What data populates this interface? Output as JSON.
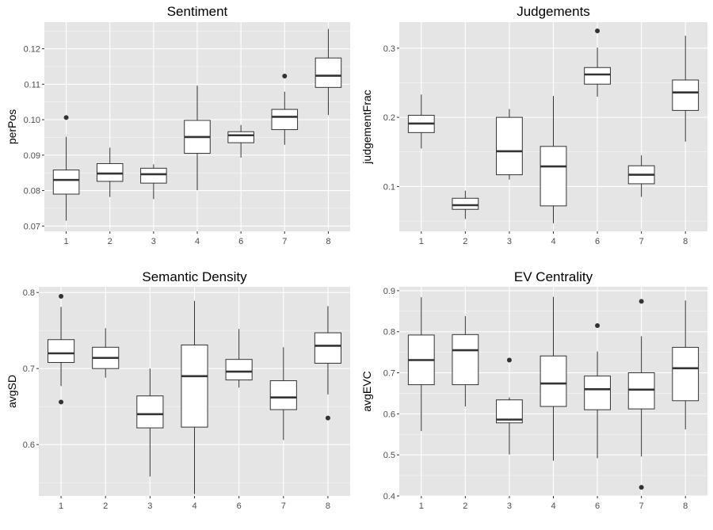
{
  "colors": {
    "panel_background": "#e5e5e5",
    "grid_major": "#ffffff",
    "box_fill": "#ffffff",
    "box_stroke": "#333333",
    "outlier": "#333333"
  },
  "chart_data": [
    {
      "type": "boxplot",
      "title": "Sentiment",
      "xlabel": "",
      "ylabel": "perPos",
      "categories": [
        "1",
        "2",
        "3",
        "4",
        "6",
        "7",
        "8"
      ],
      "ylim": [
        0.0685,
        0.1275
      ],
      "yticks": [
        0.07,
        0.08,
        0.09,
        0.1,
        0.11,
        0.12
      ],
      "ytick_labels": [
        "0.07",
        "0.08",
        "0.09",
        "0.10",
        "0.11",
        "0.12"
      ],
      "grid": true,
      "boxes": [
        {
          "category": "1",
          "min": 0.0715,
          "q1": 0.079,
          "median": 0.083,
          "q3": 0.0858,
          "max": 0.0952,
          "outliers": [
            0.1006
          ]
        },
        {
          "category": "2",
          "min": 0.0782,
          "q1": 0.0826,
          "median": 0.0848,
          "q3": 0.0876,
          "max": 0.0921,
          "outliers": []
        },
        {
          "category": "3",
          "min": 0.0776,
          "q1": 0.0821,
          "median": 0.0846,
          "q3": 0.0863,
          "max": 0.0874,
          "outliers": []
        },
        {
          "category": "4",
          "min": 0.0801,
          "q1": 0.0905,
          "median": 0.0951,
          "q3": 0.0998,
          "max": 0.1096,
          "outliers": []
        },
        {
          "category": "6",
          "min": 0.0893,
          "q1": 0.0935,
          "median": 0.0956,
          "q3": 0.0966,
          "max": 0.0985,
          "outliers": []
        },
        {
          "category": "7",
          "min": 0.0929,
          "q1": 0.0972,
          "median": 0.1008,
          "q3": 0.1029,
          "max": 0.1079,
          "outliers": [
            0.1123
          ]
        },
        {
          "category": "8",
          "min": 0.1013,
          "q1": 0.1091,
          "median": 0.1124,
          "q3": 0.1174,
          "max": 0.1256,
          "outliers": []
        }
      ]
    },
    {
      "type": "boxplot",
      "title": "Judgements",
      "xlabel": "",
      "ylabel": "judgementFrac",
      "categories": [
        "1",
        "2",
        "3",
        "4",
        "6",
        "7",
        "8"
      ],
      "ylim": [
        0.0352,
        0.3376
      ],
      "yticks": [
        0.1,
        0.2,
        0.3
      ],
      "ytick_labels": [
        "0.1",
        "0.2",
        "0.3"
      ],
      "grid": true,
      "boxes": [
        {
          "category": "1",
          "min": 0.155,
          "q1": 0.178,
          "median": 0.191,
          "q3": 0.203,
          "max": 0.233,
          "outliers": []
        },
        {
          "category": "2",
          "min": 0.053,
          "q1": 0.067,
          "median": 0.073,
          "q3": 0.083,
          "max": 0.094,
          "outliers": []
        },
        {
          "category": "3",
          "min": 0.11,
          "q1": 0.117,
          "median": 0.151,
          "q3": 0.2,
          "max": 0.212,
          "outliers": []
        },
        {
          "category": "4",
          "min": 0.047,
          "q1": 0.072,
          "median": 0.129,
          "q3": 0.158,
          "max": 0.231,
          "outliers": []
        },
        {
          "category": "6",
          "min": 0.23,
          "q1": 0.248,
          "median": 0.262,
          "q3": 0.272,
          "max": 0.301,
          "outliers": [
            0.325
          ]
        },
        {
          "category": "7",
          "min": 0.085,
          "q1": 0.104,
          "median": 0.117,
          "q3": 0.13,
          "max": 0.145,
          "outliers": []
        },
        {
          "category": "8",
          "min": 0.165,
          "q1": 0.21,
          "median": 0.236,
          "q3": 0.254,
          "max": 0.318,
          "outliers": []
        }
      ]
    },
    {
      "type": "boxplot",
      "title": "Semantic Density",
      "xlabel": "",
      "ylabel": "avgSD",
      "categories": [
        "1",
        "2",
        "3",
        "4",
        "6",
        "7",
        "8"
      ],
      "ylim": [
        0.5325,
        0.8075
      ],
      "yticks": [
        0.6,
        0.7,
        0.8
      ],
      "ytick_labels": [
        "0.6",
        "0.7",
        "0.8"
      ],
      "grid": true,
      "boxes": [
        {
          "category": "1",
          "min": 0.677,
          "q1": 0.708,
          "median": 0.72,
          "q3": 0.738,
          "max": 0.781,
          "outliers": [
            0.795,
            0.656
          ]
        },
        {
          "category": "2",
          "min": 0.688,
          "q1": 0.7,
          "median": 0.714,
          "q3": 0.728,
          "max": 0.753,
          "outliers": []
        },
        {
          "category": "3",
          "min": 0.558,
          "q1": 0.622,
          "median": 0.64,
          "q3": 0.664,
          "max": 0.7,
          "outliers": []
        },
        {
          "category": "4",
          "min": 0.535,
          "q1": 0.623,
          "median": 0.69,
          "q3": 0.731,
          "max": 0.789,
          "outliers": []
        },
        {
          "category": "6",
          "min": 0.675,
          "q1": 0.685,
          "median": 0.696,
          "q3": 0.712,
          "max": 0.752,
          "outliers": []
        },
        {
          "category": "7",
          "min": 0.606,
          "q1": 0.646,
          "median": 0.662,
          "q3": 0.684,
          "max": 0.728,
          "outliers": []
        },
        {
          "category": "8",
          "min": 0.666,
          "q1": 0.707,
          "median": 0.73,
          "q3": 0.747,
          "max": 0.782,
          "outliers": [
            0.635
          ]
        }
      ]
    },
    {
      "type": "boxplot",
      "title": "EV Centrality",
      "xlabel": "",
      "ylabel": "avgEVC",
      "categories": [
        "1",
        "2",
        "3",
        "4",
        "6",
        "7",
        "8"
      ],
      "ylim": [
        0.4,
        0.9095
      ],
      "yticks": [
        0.4,
        0.5,
        0.6,
        0.7,
        0.8,
        0.9
      ],
      "ytick_labels": [
        "0.4",
        "0.5",
        "0.6",
        "0.7",
        "0.8",
        "0.9"
      ],
      "grid": true,
      "boxes": [
        {
          "category": "1",
          "min": 0.558,
          "q1": 0.671,
          "median": 0.731,
          "q3": 0.792,
          "max": 0.884,
          "outliers": []
        },
        {
          "category": "2",
          "min": 0.618,
          "q1": 0.671,
          "median": 0.755,
          "q3": 0.793,
          "max": 0.838,
          "outliers": []
        },
        {
          "category": "3",
          "min": 0.501,
          "q1": 0.578,
          "median": 0.586,
          "q3": 0.634,
          "max": 0.64,
          "outliers": [
            0.731
          ]
        },
        {
          "category": "4",
          "min": 0.486,
          "q1": 0.618,
          "median": 0.674,
          "q3": 0.741,
          "max": 0.885,
          "outliers": []
        },
        {
          "category": "6",
          "min": 0.492,
          "q1": 0.61,
          "median": 0.66,
          "q3": 0.692,
          "max": 0.752,
          "outliers": [
            0.815
          ]
        },
        {
          "category": "7",
          "min": 0.496,
          "q1": 0.612,
          "median": 0.659,
          "q3": 0.7,
          "max": 0.789,
          "outliers": [
            0.874,
            0.421
          ]
        },
        {
          "category": "8",
          "min": 0.562,
          "q1": 0.632,
          "median": 0.711,
          "q3": 0.762,
          "max": 0.876,
          "outliers": []
        }
      ]
    }
  ]
}
